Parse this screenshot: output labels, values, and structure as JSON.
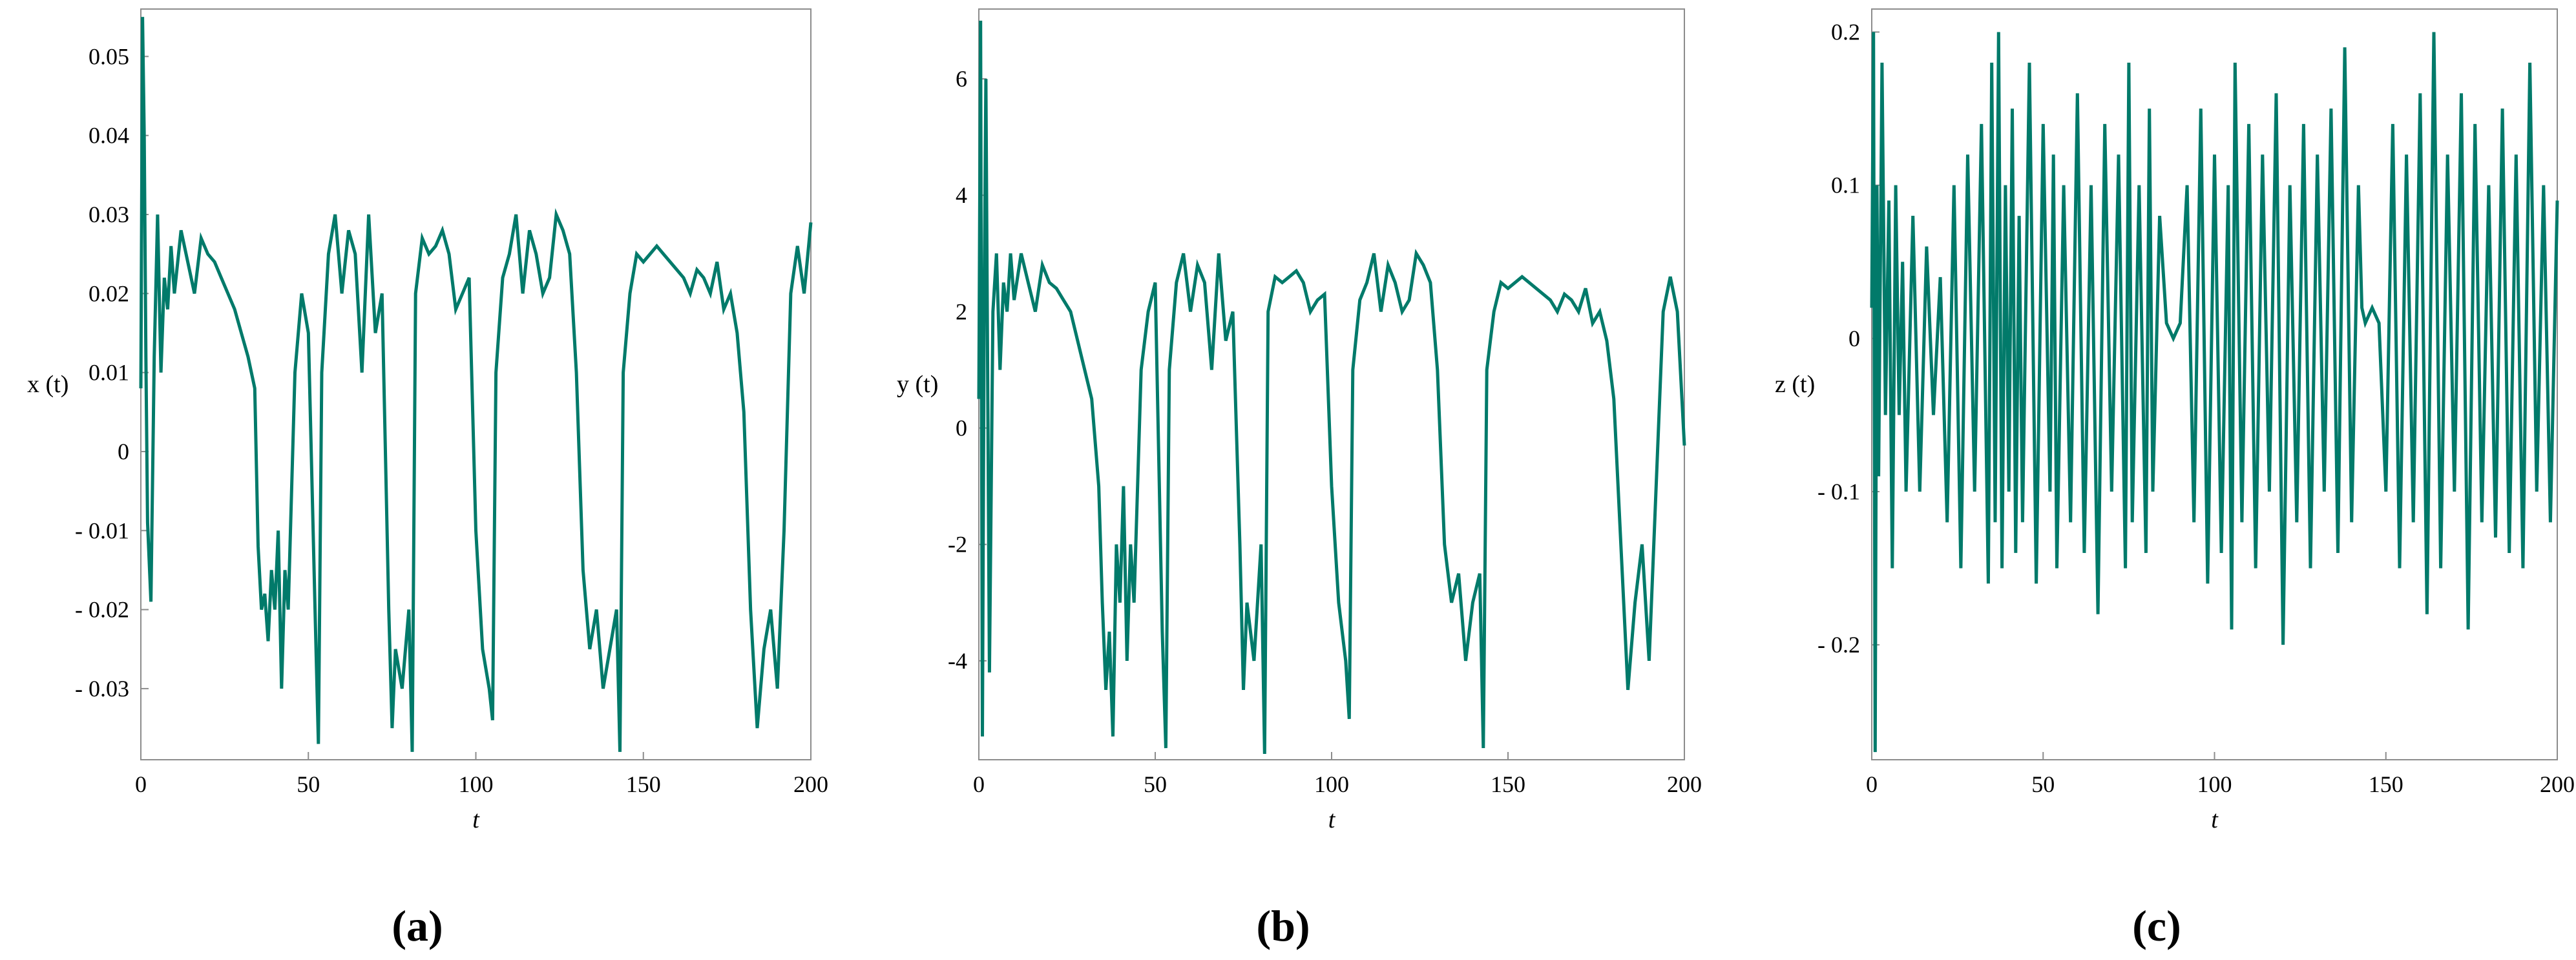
{
  "colors": {
    "series": "#017a6a",
    "axis": "#8c8c8c",
    "text": "#000000"
  },
  "chart_data": [
    {
      "type": "line",
      "panel_label": "(a)",
      "xlabel": "t",
      "ylabel": "x (t)",
      "xlim": [
        0,
        200
      ],
      "ylim": [
        -0.039,
        0.056
      ],
      "xticks": [
        0,
        50,
        100,
        150,
        200
      ],
      "xtick_labels": [
        "0",
        "50",
        "100",
        "150",
        "200"
      ],
      "yticks": [
        0.05,
        0.04,
        0.03,
        0.02,
        0.01,
        0,
        -0.01,
        -0.02,
        -0.03
      ],
      "ytick_labels": [
        "0.05",
        "0.04",
        "0.03",
        "0.02",
        "0.01",
        "0",
        "- 0.01",
        "- 0.02",
        "- 0.03"
      ],
      "grid": false,
      "series": [
        {
          "x": [
            0,
            0.5,
            1,
            1.5,
            2,
            3,
            4,
            5,
            6,
            7,
            8,
            9,
            10,
            12,
            14,
            16,
            18,
            20,
            22,
            24,
            26,
            28,
            30,
            32,
            34,
            35,
            36,
            37,
            38,
            39,
            40,
            41,
            42,
            43,
            44,
            46,
            48,
            50,
            52,
            53,
            54,
            56,
            58,
            60,
            62,
            64,
            66,
            68,
            70,
            72,
            74,
            75,
            76,
            78,
            80,
            81,
            82,
            84,
            86,
            88,
            90,
            92,
            94,
            96,
            98,
            100,
            102,
            104,
            105,
            106,
            108,
            110,
            112,
            114,
            116,
            118,
            120,
            122,
            124,
            126,
            128,
            130,
            132,
            134,
            136,
            138,
            140,
            142,
            143,
            144,
            146,
            148,
            150,
            152,
            154,
            156,
            158,
            160,
            162,
            164,
            166,
            168,
            170,
            172,
            174,
            176,
            178,
            180,
            182,
            184,
            186,
            188,
            190,
            192,
            194,
            196,
            198,
            200
          ],
          "y": [
            0.008,
            0.055,
            0.04,
            0.012,
            -0.009,
            -0.019,
            0.012,
            0.03,
            0.01,
            0.022,
            0.018,
            0.026,
            0.02,
            0.028,
            0.024,
            0.02,
            0.027,
            0.025,
            0.024,
            0.022,
            0.02,
            0.018,
            0.015,
            0.012,
            0.008,
            -0.012,
            -0.02,
            -0.018,
            -0.024,
            -0.015,
            -0.02,
            -0.01,
            -0.03,
            -0.015,
            -0.02,
            0.01,
            0.02,
            0.015,
            -0.02,
            -0.037,
            0.01,
            0.025,
            0.03,
            0.02,
            0.028,
            0.025,
            0.01,
            0.03,
            0.015,
            0.02,
            -0.02,
            -0.035,
            -0.025,
            -0.03,
            -0.02,
            -0.038,
            0.02,
            0.027,
            0.025,
            0.026,
            0.028,
            0.025,
            0.018,
            0.02,
            0.022,
            -0.01,
            -0.025,
            -0.03,
            -0.034,
            0.01,
            0.022,
            0.025,
            0.03,
            0.02,
            0.028,
            0.025,
            0.02,
            0.022,
            0.03,
            0.028,
            0.025,
            0.01,
            -0.015,
            -0.025,
            -0.02,
            -0.03,
            -0.025,
            -0.02,
            -0.038,
            0.01,
            0.02,
            0.025,
            0.024,
            0.025,
            0.026,
            0.025,
            0.024,
            0.023,
            0.022,
            0.02,
            0.023,
            0.022,
            0.02,
            0.024,
            0.018,
            0.02,
            0.015,
            0.005,
            -0.02,
            -0.035,
            -0.025,
            -0.02,
            -0.03,
            -0.01,
            0.02,
            0.026,
            0.02,
            0.029
          ]
        }
      ]
    },
    {
      "type": "line",
      "panel_label": "(b)",
      "xlabel": "t",
      "ylabel": "y (t)",
      "xlim": [
        0,
        200
      ],
      "ylim": [
        -5.7,
        7.2
      ],
      "xticks": [
        0,
        50,
        100,
        150,
        200
      ],
      "xtick_labels": [
        "0",
        "50",
        "100",
        "150",
        "200"
      ],
      "yticks": [
        6,
        4,
        2,
        0,
        -2,
        -4
      ],
      "ytick_labels": [
        "6",
        "4",
        "2",
        "0",
        "-2",
        "-4"
      ],
      "grid": false,
      "series": [
        {
          "x": [
            0,
            0.5,
            1,
            1.5,
            2,
            3,
            4,
            5,
            6,
            7,
            8,
            9,
            10,
            12,
            14,
            16,
            18,
            20,
            22,
            24,
            26,
            28,
            30,
            32,
            34,
            35,
            36,
            37,
            38,
            39,
            40,
            41,
            42,
            43,
            44,
            46,
            48,
            50,
            52,
            53,
            54,
            56,
            58,
            60,
            62,
            64,
            66,
            68,
            70,
            72,
            74,
            75,
            76,
            78,
            80,
            81,
            82,
            84,
            86,
            88,
            90,
            92,
            94,
            96,
            98,
            100,
            102,
            104,
            105,
            106,
            108,
            110,
            112,
            114,
            116,
            118,
            120,
            122,
            124,
            126,
            128,
            130,
            132,
            134,
            136,
            138,
            140,
            142,
            143,
            144,
            146,
            148,
            150,
            152,
            154,
            156,
            158,
            160,
            162,
            164,
            166,
            168,
            170,
            172,
            174,
            176,
            178,
            180,
            182,
            184,
            186,
            188,
            190,
            192,
            194,
            196,
            198,
            200
          ],
          "y": [
            0.5,
            7,
            -5.3,
            2,
            6,
            -4.2,
            2,
            3,
            1,
            2.5,
            2,
            3,
            2.2,
            3,
            2.5,
            2,
            2.8,
            2.5,
            2.4,
            2.2,
            2,
            1.5,
            1,
            0.5,
            -1,
            -3,
            -4.5,
            -3.5,
            -5.3,
            -2,
            -3,
            -1,
            -4,
            -2,
            -3,
            1,
            2,
            2.5,
            -3.5,
            -5.5,
            1,
            2.5,
            3,
            2,
            2.8,
            2.5,
            1,
            3,
            1.5,
            2,
            -2,
            -4.5,
            -3,
            -4,
            -2,
            -5.6,
            2,
            2.6,
            2.5,
            2.6,
            2.7,
            2.5,
            2,
            2.2,
            2.3,
            -1,
            -3,
            -4,
            -5,
            1,
            2.2,
            2.5,
            3,
            2,
            2.8,
            2.5,
            2,
            2.2,
            3,
            2.8,
            2.5,
            1,
            -2,
            -3,
            -2.5,
            -4,
            -3,
            -2.5,
            -5.5,
            1,
            2,
            2.5,
            2.4,
            2.5,
            2.6,
            2.5,
            2.4,
            2.3,
            2.2,
            2,
            2.3,
            2.2,
            2,
            2.4,
            1.8,
            2,
            1.5,
            0.5,
            -2,
            -4.5,
            -3,
            -2,
            -4,
            -1,
            2,
            2.6,
            2,
            -0.3
          ]
        }
      ]
    },
    {
      "type": "line",
      "panel_label": "(c)",
      "xlabel": "t",
      "ylabel": "z (t)",
      "xlim": [
        0,
        200
      ],
      "ylim": [
        -0.275,
        0.215
      ],
      "xticks": [
        0,
        50,
        100,
        150,
        200
      ],
      "xtick_labels": [
        "0",
        "50",
        "100",
        "150",
        "200"
      ],
      "yticks": [
        0.2,
        0.1,
        0,
        -0.1,
        -0.2
      ],
      "ytick_labels": [
        "0.2",
        "0.1",
        "0",
        "- 0.1",
        "- 0.2"
      ],
      "grid": false,
      "series": [
        {
          "x": [
            0,
            0.5,
            1,
            1.5,
            2,
            3,
            4,
            5,
            6,
            7,
            8,
            9,
            10,
            12,
            14,
            16,
            18,
            20,
            22,
            24,
            26,
            28,
            30,
            32,
            34,
            35,
            36,
            37,
            38,
            39,
            40,
            41,
            42,
            43,
            44,
            46,
            48,
            50,
            52,
            53,
            54,
            56,
            58,
            60,
            62,
            64,
            66,
            68,
            70,
            72,
            74,
            75,
            76,
            78,
            80,
            81,
            82,
            84,
            86,
            88,
            90,
            92,
            94,
            96,
            98,
            100,
            102,
            104,
            105,
            106,
            108,
            110,
            112,
            114,
            116,
            118,
            120,
            122,
            124,
            126,
            128,
            130,
            132,
            134,
            136,
            138,
            140,
            142,
            143,
            144,
            146,
            148,
            150,
            152,
            154,
            156,
            158,
            160,
            162,
            164,
            166,
            168,
            170,
            172,
            174,
            176,
            178,
            180,
            182,
            184,
            186,
            188,
            190,
            192,
            194,
            196,
            198,
            200
          ],
          "y": [
            0.02,
            0.2,
            -0.27,
            0.1,
            -0.09,
            0.18,
            -0.05,
            0.09,
            -0.15,
            0.1,
            -0.05,
            0.05,
            -0.1,
            0.08,
            -0.1,
            0.06,
            -0.05,
            0.04,
            -0.12,
            0.1,
            -0.15,
            0.12,
            -0.1,
            0.14,
            -0.16,
            0.18,
            -0.12,
            0.2,
            -0.15,
            0.1,
            -0.1,
            0.15,
            -0.14,
            0.08,
            -0.12,
            0.18,
            -0.16,
            0.14,
            -0.1,
            0.12,
            -0.15,
            0.1,
            -0.12,
            0.16,
            -0.14,
            0.1,
            -0.18,
            0.14,
            -0.1,
            0.12,
            -0.15,
            0.18,
            -0.12,
            0.1,
            -0.14,
            0.15,
            -0.1,
            0.08,
            0.01,
            0,
            0.01,
            0.1,
            -0.12,
            0.15,
            -0.16,
            0.12,
            -0.14,
            0.1,
            -0.19,
            0.18,
            -0.12,
            0.14,
            -0.15,
            0.12,
            -0.1,
            0.16,
            -0.2,
            0.1,
            -0.12,
            0.14,
            -0.15,
            0.12,
            -0.1,
            0.15,
            -0.14,
            0.19,
            -0.12,
            0.1,
            0.02,
            0.01,
            0.02,
            0.01,
            -0.1,
            0.14,
            -0.15,
            0.12,
            -0.12,
            0.16,
            -0.18,
            0.2,
            -0.15,
            0.12,
            -0.1,
            0.16,
            -0.19,
            0.14,
            -0.12,
            0.1,
            -0.13,
            0.15,
            -0.14,
            0.12,
            -0.15,
            0.18,
            -0.1,
            0.1,
            -0.12,
            0.09
          ]
        }
      ]
    }
  ]
}
